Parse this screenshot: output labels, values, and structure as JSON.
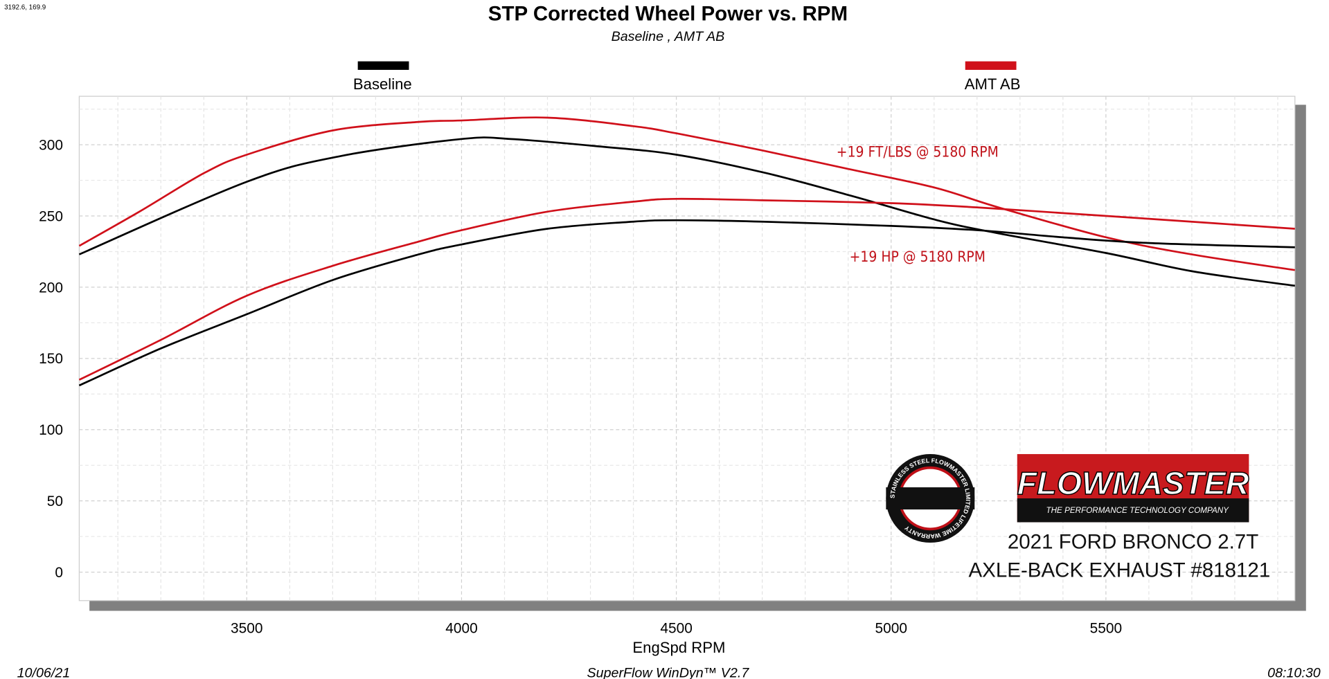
{
  "cursor_readout": "3192.6, 169.9",
  "footer": {
    "date": "10/06/21",
    "software": "SuperFlow WinDyn™ V2.7",
    "time": "08:10:30"
  },
  "branding": {
    "flowmaster_logo": "FLOWMASTER",
    "flowmaster_tagline": "THE PERFORMANCE TECHNOLOGY COMPANY",
    "warranty_badge": "STAINLESS STEEL FLOWMASTER LIMITED LIFETIME WARRANTY",
    "caption_line1": "2021 FORD BRONCO 2.7T",
    "caption_line2": "AXLE-BACK EXHAUST #818121"
  },
  "chart_data": {
    "type": "line",
    "title": "STP Corrected Wheel Power vs. RPM",
    "subtitle": "Baseline , AMT AB",
    "xlabel": "EngSpd  RPM",
    "ylabel": "",
    "xlim": [
      3110,
      5940
    ],
    "ylim": [
      -20,
      334
    ],
    "xticks": [
      3500,
      4000,
      4500,
      5000,
      5500
    ],
    "yticks": [
      0,
      50,
      100,
      150,
      200,
      250,
      300
    ],
    "grid": true,
    "legend": [
      {
        "name": "Baseline",
        "color": "#000000"
      },
      {
        "name": "AMT AB",
        "color": "#d0101a"
      }
    ],
    "legend_placement": "top",
    "annotations": [
      {
        "text": "+19 FT/LBS @ 5180 RPM",
        "color": "#c0121a"
      },
      {
        "text": "+19 HP @ 5180 RPM",
        "color": "#c0121a"
      }
    ],
    "series": [
      {
        "name": "Baseline",
        "measure": "torque",
        "color": "#000000",
        "x": [
          3110,
          3500,
          3718,
          4000,
          4115,
          4313,
          4500,
          4710,
          4909,
          5107,
          5246,
          5500,
          5704,
          5940
        ],
        "y": [
          223,
          274,
          292,
          304,
          304,
          299,
          293,
          280,
          264,
          247,
          238,
          224,
          211,
          201
        ]
      },
      {
        "name": "AMT AB",
        "measure": "torque",
        "color": "#d0101a",
        "x": [
          3110,
          3250,
          3400,
          3500,
          3700,
          3900,
          4000,
          4200,
          4400,
          4500,
          4700,
          4900,
          5100,
          5250,
          5500,
          5700,
          5940
        ],
        "y": [
          229,
          253,
          280,
          293,
          310,
          316,
          317,
          319,
          313,
          308,
          296,
          283,
          270,
          256,
          235,
          223,
          212
        ]
      },
      {
        "name": "Baseline",
        "measure": "hp",
        "color": "#000000",
        "x": [
          3110,
          3300,
          3500,
          3700,
          3900,
          4000,
          4200,
          4400,
          4500,
          4700,
          5000,
          5200,
          5400,
          5600,
          5940
        ],
        "y": [
          131,
          157,
          181,
          205,
          223,
          230,
          241,
          246,
          247,
          246,
          243,
          240,
          235,
          231,
          228
        ]
      },
      {
        "name": "AMT AB",
        "measure": "hp",
        "color": "#d0101a",
        "x": [
          3110,
          3300,
          3500,
          3700,
          3900,
          4000,
          4200,
          4400,
          4500,
          4700,
          5000,
          5200,
          5400,
          5600,
          5940
        ],
        "y": [
          135,
          163,
          194,
          215,
          232,
          240,
          253,
          260,
          262,
          261,
          259,
          256,
          252,
          248,
          241
        ]
      }
    ]
  }
}
